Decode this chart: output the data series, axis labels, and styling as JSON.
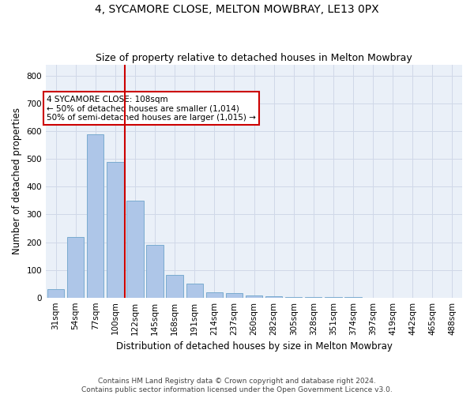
{
  "title": "4, SYCAMORE CLOSE, MELTON MOWBRAY, LE13 0PX",
  "subtitle": "Size of property relative to detached houses in Melton Mowbray",
  "xlabel": "Distribution of detached houses by size in Melton Mowbray",
  "ylabel": "Number of detached properties",
  "footer": "Contains HM Land Registry data © Crown copyright and database right 2024.\nContains public sector information licensed under the Open Government Licence v3.0.",
  "categories": [
    "31sqm",
    "54sqm",
    "77sqm",
    "100sqm",
    "122sqm",
    "145sqm",
    "168sqm",
    "191sqm",
    "214sqm",
    "237sqm",
    "260sqm",
    "282sqm",
    "305sqm",
    "328sqm",
    "351sqm",
    "374sqm",
    "397sqm",
    "419sqm",
    "442sqm",
    "465sqm",
    "488sqm"
  ],
  "values": [
    31,
    220,
    590,
    490,
    350,
    190,
    83,
    50,
    18,
    15,
    8,
    5,
    3,
    2,
    1,
    1,
    0,
    0,
    0,
    0,
    0
  ],
  "bar_color": "#aec6e8",
  "bar_edge_color": "#7aabd0",
  "annotation_text": "4 SYCAMORE CLOSE: 108sqm\n← 50% of detached houses are smaller (1,014)\n50% of semi-detached houses are larger (1,015) →",
  "vline_x": 3.5,
  "vline_color": "#cc0000",
  "ylim": [
    0,
    840
  ],
  "yticks": [
    0,
    100,
    200,
    300,
    400,
    500,
    600,
    700,
    800
  ],
  "grid_color": "#d0d8e8",
  "bg_color": "#eaf0f8",
  "title_fontsize": 10,
  "subtitle_fontsize": 9,
  "label_fontsize": 8.5,
  "tick_fontsize": 7.5,
  "footer_fontsize": 6.5
}
